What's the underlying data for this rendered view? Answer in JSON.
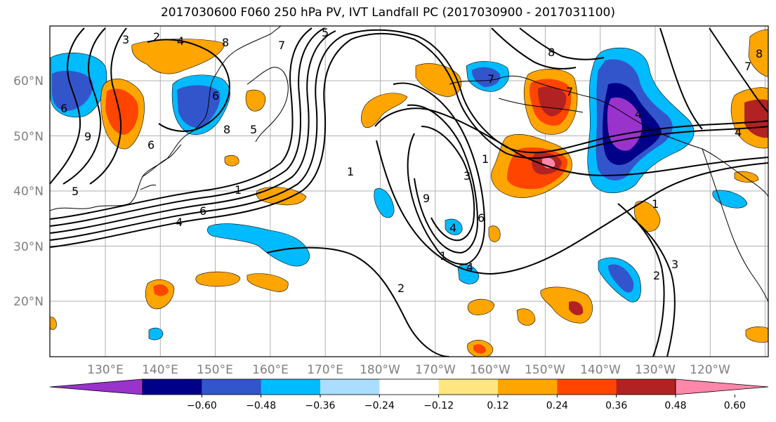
{
  "title": "2017030600 F060 250 hPa PV, IVT Landfall PC (2017030900 - 2017031100)",
  "map": {
    "projection": "PlateCarree",
    "lon_range": [
      "120°E",
      "110°W"
    ],
    "lat_range": [
      "10°N",
      "70°N"
    ],
    "lon_tick_labels": [
      "130°E",
      "140°E",
      "150°E",
      "160°E",
      "170°E",
      "180°W",
      "170°W",
      "160°W",
      "150°W",
      "140°W",
      "130°W",
      "120°W"
    ],
    "lat_tick_labels": [
      "20°N",
      "30°N",
      "40°N",
      "50°N",
      "60°N"
    ],
    "grid": true,
    "contour_labels": [
      "3",
      "2",
      "4",
      "8",
      "5",
      "7",
      "6",
      "8",
      "9",
      "1",
      "4",
      "3",
      "1",
      "9",
      "6",
      "4",
      "1",
      "2",
      "1",
      "8",
      "7",
      "6",
      "4",
      "1",
      "2",
      "3",
      "7",
      "8",
      "6",
      "5",
      "4",
      "4",
      "5",
      "6",
      "7"
    ]
  },
  "colorbar": {
    "colors": [
      "#9933cc",
      "#000088",
      "#3355cc",
      "#00bbff",
      "#aaddff",
      "#ffffff",
      "#ffe680",
      "#ffa500",
      "#ff4500",
      "#b22222",
      "#ff88aa"
    ],
    "tick_labels": [
      "−0.60",
      "−0.48",
      "−0.36",
      "−0.24",
      "−0.12",
      "0.12",
      "0.24",
      "0.36",
      "0.48",
      "0.60"
    ],
    "extend": "both"
  }
}
